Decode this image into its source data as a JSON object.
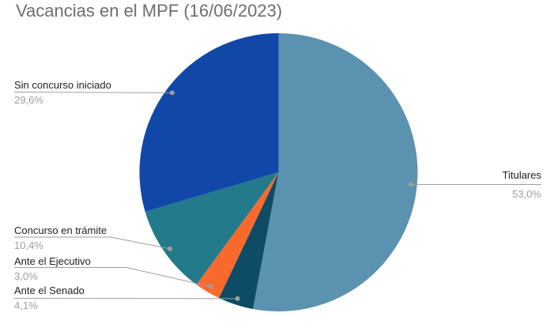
{
  "chart_data": {
    "type": "pie",
    "title": "Vacancias en el MPF (16/06/2023)",
    "direction": "clockwise",
    "start_angle": "12 o'clock",
    "legend": "none",
    "labels_style": "outside callouts with gray leader lines and dots; percent shown below each name",
    "slices": [
      {
        "label": "Titulares",
        "value": 53.0,
        "pct_label": "53,0%",
        "color": "#5b92af"
      },
      {
        "label": "Ante el Senado",
        "value": 4.1,
        "pct_label": "4,1%",
        "color": "#0e4c66"
      },
      {
        "label": "Ante el Ejecutivo",
        "value": 3.0,
        "pct_label": "3,0%",
        "color": "#f9692c"
      },
      {
        "label": "Concurso en trámite",
        "value": 10.4,
        "pct_label": "10,4%",
        "color": "#227a8a"
      },
      {
        "label": "Sin concurso iniciado",
        "value": 29.6,
        "pct_label": "29,6%",
        "color": "#1148a8"
      }
    ]
  },
  "colors": {
    "background": "#ffffff",
    "title_text": "#6e6e6e",
    "label_text": "#1f1f1f",
    "percent_text": "#9e9e9e",
    "leader_line": "#9e9e9e",
    "leader_dot": "#9e9e9e"
  }
}
